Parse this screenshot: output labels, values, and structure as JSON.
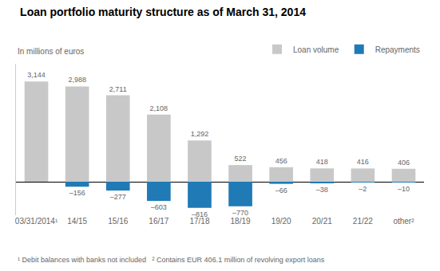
{
  "chart_data": {
    "type": "bar",
    "title": "Loan portfolio maturity structure as of March 31, 2014",
    "subtitle": "In millions of euros",
    "annotations": [
      "¹ Debit balances with banks not included   ² Contains EUR 406.1 million of revolving export loans"
    ],
    "categories": [
      "03/31/2014¹",
      "14/15",
      "15/16",
      "16/17",
      "17/18",
      "18/19",
      "19/20",
      "20/21",
      "21/22",
      "other²"
    ],
    "series": [
      {
        "name": "Loan volume",
        "color": "#c8c8c8",
        "values": [
          3144,
          2988,
          2711,
          2108,
          1292,
          522,
          456,
          418,
          416,
          406
        ],
        "value_labels": [
          "3,144",
          "2,988",
          "2,711",
          "2,108",
          "1,292",
          "522",
          "456",
          "418",
          "416",
          "406"
        ]
      },
      {
        "name": "Repayments",
        "color": "#1f7ab5",
        "values": [
          0,
          -156,
          -277,
          -603,
          -816,
          -770,
          -66,
          -38,
          -2,
          -10
        ],
        "value_labels": [
          null,
          "–156",
          "–277",
          "–603",
          "–816",
          "–770",
          "–66",
          "–38",
          "–2",
          "–10"
        ]
      }
    ],
    "ylim": [
      -1050,
      3700
    ],
    "data_labels": true,
    "tick_labels": "x",
    "grid": false,
    "legend": "upper right"
  }
}
